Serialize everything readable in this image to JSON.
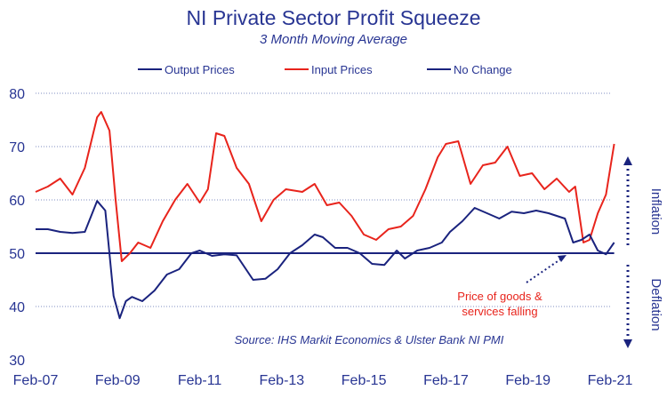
{
  "chart_data": {
    "type": "line",
    "title": "NI Private Sector Profit Squeeze",
    "subtitle": "3 Month Moving Average",
    "ylim": [
      30,
      80
    ],
    "y_ticks": [
      30,
      40,
      50,
      60,
      70,
      80
    ],
    "x_tick_labels": [
      "Feb-07",
      "Feb-09",
      "Feb-11",
      "Feb-13",
      "Feb-15",
      "Feb-17",
      "Feb-19",
      "Feb-21"
    ],
    "x_range": [
      2007.0,
      2021.0
    ],
    "grid": "horizontal, dotted",
    "legend_position": "top",
    "series": [
      {
        "name": "Output Prices",
        "color": "#1a237e",
        "x": [
          2007.0,
          2007.3,
          2007.6,
          2007.9,
          2008.2,
          2008.5,
          2008.7,
          2008.9,
          2009.05,
          2009.2,
          2009.35,
          2009.6,
          2009.9,
          2010.2,
          2010.5,
          2010.8,
          2011.0,
          2011.3,
          2011.6,
          2011.9,
          2012.3,
          2012.6,
          2012.9,
          2013.2,
          2013.5,
          2013.8,
          2014.0,
          2014.3,
          2014.6,
          2014.9,
          2015.2,
          2015.5,
          2015.8,
          2016.0,
          2016.3,
          2016.6,
          2016.9,
          2017.1,
          2017.4,
          2017.7,
          2018.0,
          2018.3,
          2018.6,
          2018.9,
          2019.2,
          2019.5,
          2019.7,
          2019.9,
          2020.1,
          2020.3,
          2020.5,
          2020.7,
          2020.9,
          2021.1
        ],
        "values": [
          54.5,
          54.5,
          54.0,
          53.8,
          54.0,
          59.8,
          58.0,
          42.0,
          37.8,
          41.0,
          41.8,
          41.0,
          43.0,
          46.0,
          47.0,
          50.0,
          50.5,
          49.5,
          49.8,
          49.6,
          45.0,
          45.2,
          47.0,
          50.0,
          51.5,
          53.5,
          53.0,
          51.0,
          51.0,
          50.0,
          48.0,
          47.8,
          50.5,
          49.0,
          50.5,
          51.0,
          52.0,
          54.0,
          56.0,
          58.5,
          57.5,
          56.5,
          57.8,
          57.5,
          58.0,
          57.5,
          57.0,
          56.5,
          52.0,
          52.5,
          53.5,
          50.5,
          49.8,
          52.0
        ]
      },
      {
        "name": "Input Prices",
        "color": "#e8241c",
        "x": [
          2007.0,
          2007.3,
          2007.6,
          2007.9,
          2008.2,
          2008.5,
          2008.6,
          2008.8,
          2008.95,
          2009.1,
          2009.3,
          2009.5,
          2009.8,
          2010.1,
          2010.4,
          2010.7,
          2011.0,
          2011.2,
          2011.4,
          2011.6,
          2011.9,
          2012.2,
          2012.5,
          2012.8,
          2013.1,
          2013.5,
          2013.8,
          2014.1,
          2014.4,
          2014.7,
          2015.0,
          2015.3,
          2015.6,
          2015.9,
          2016.2,
          2016.5,
          2016.8,
          2017.0,
          2017.3,
          2017.6,
          2017.9,
          2018.2,
          2018.5,
          2018.8,
          2019.1,
          2019.4,
          2019.7,
          2020.0,
          2020.15,
          2020.35,
          2020.5,
          2020.7,
          2020.9,
          2021.1
        ],
        "values": [
          61.5,
          62.5,
          64.0,
          61.0,
          66.0,
          75.5,
          76.5,
          73.0,
          60.0,
          48.5,
          50.0,
          52.0,
          51.0,
          56.0,
          60.0,
          63.0,
          59.5,
          62.0,
          72.5,
          72.0,
          66.0,
          63.0,
          56.0,
          60.0,
          62.0,
          61.5,
          63.0,
          59.0,
          59.5,
          57.0,
          53.5,
          52.5,
          54.5,
          55.0,
          57.0,
          62.0,
          68.0,
          70.5,
          71.0,
          63.0,
          66.5,
          67.0,
          70.0,
          64.5,
          65.0,
          62.0,
          64.0,
          61.5,
          62.5,
          52.0,
          52.5,
          57.5,
          61.0,
          70.5
        ]
      },
      {
        "name": "No Change",
        "color": "#1a237e",
        "x": [
          2007.0,
          2021.1
        ],
        "values": [
          50,
          50
        ]
      }
    ],
    "annotations": {
      "note_line1": "Price of goods &",
      "note_line2": "services falling",
      "source": "Source: IHS Markit Economics & Ulster Bank NI PMI",
      "inflation": "Inflation",
      "deflation": "Deflation"
    }
  }
}
